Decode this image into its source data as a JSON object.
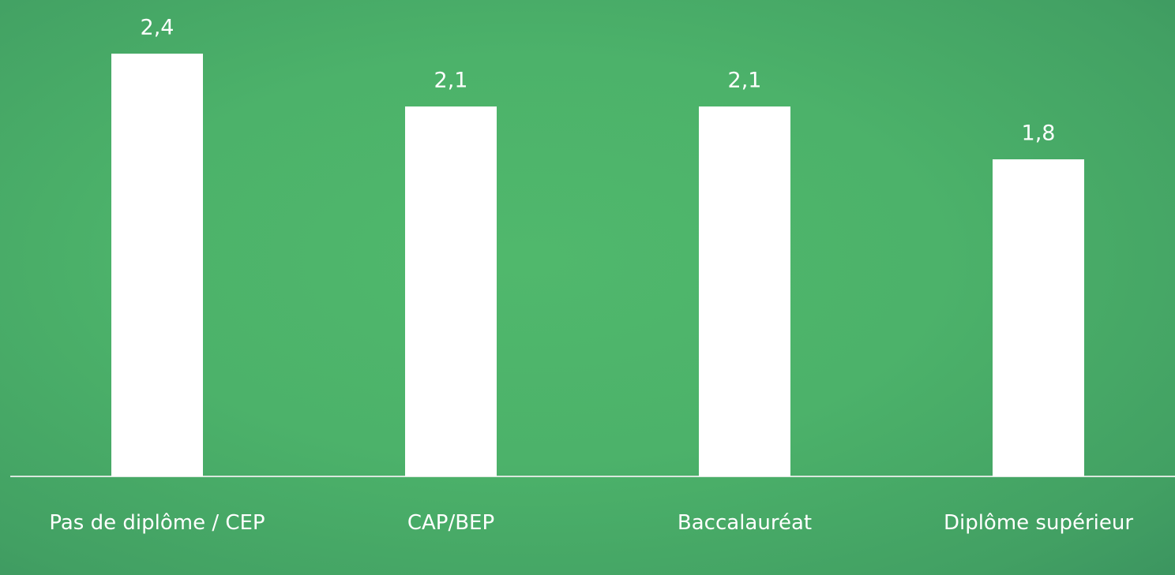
{
  "chart_data": {
    "type": "bar",
    "categories": [
      "Pas de diplôme / CEP",
      "CAP/BEP",
      "Baccalauréat",
      "Diplôme supérieur"
    ],
    "values": [
      2.4,
      2.1,
      2.1,
      1.8
    ],
    "value_labels": [
      "2,4",
      "2,1",
      "2,1",
      "1,8"
    ],
    "color": "#ffffff",
    "ylim": [
      0,
      2.7
    ]
  }
}
